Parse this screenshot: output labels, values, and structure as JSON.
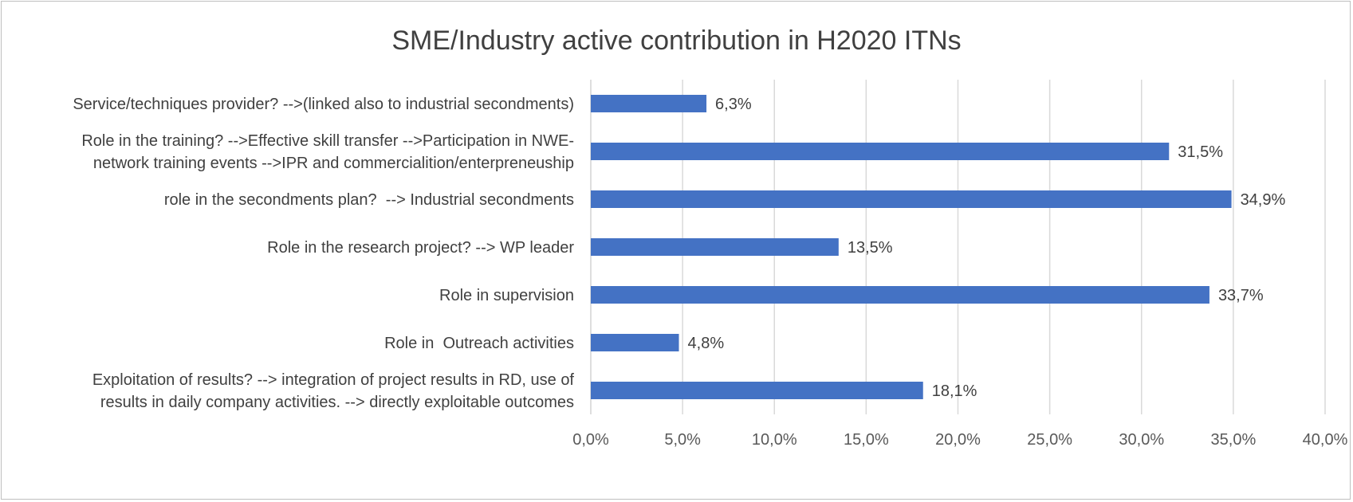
{
  "chart_data": {
    "type": "bar",
    "orientation": "horizontal",
    "title": "SME/Industry active contribution in H2020 ITNs",
    "xlabel": "",
    "ylabel": "",
    "xlim": [
      0,
      40
    ],
    "x_ticks": [
      {
        "value": 0,
        "label": "0,0%"
      },
      {
        "value": 5,
        "label": "5,0%"
      },
      {
        "value": 10,
        "label": "10,0%"
      },
      {
        "value": 15,
        "label": "15,0%"
      },
      {
        "value": 20,
        "label": "20,0%"
      },
      {
        "value": 25,
        "label": "25,0%"
      },
      {
        "value": 30,
        "label": "30,0%"
      },
      {
        "value": 35,
        "label": "35,0%"
      },
      {
        "value": 40,
        "label": "40,0%"
      }
    ],
    "grid": true,
    "bar_color": "#4472c4",
    "categories": [
      [
        "Service/techniques provider? -->(linked also to industrial secondments)"
      ],
      [
        "Role in the training? -->Effective skill transfer -->Participation in NWE-",
        "network training events -->IPR and commercialition/enterpreneuship"
      ],
      [
        "role in the secondments plan?  --> Industrial secondments"
      ],
      [
        "Role in the research project? --> WP leader"
      ],
      [
        "Role in supervision"
      ],
      [
        "Role in  Outreach activities"
      ],
      [
        "Exploitation of results? --> integration of project results in RD, use of",
        "results in daily company activities. --> directly exploitable outcomes"
      ]
    ],
    "values": [
      6.3,
      31.5,
      34.9,
      13.5,
      33.7,
      4.8,
      18.1
    ],
    "data_labels": [
      "6,3%",
      "31,5%",
      "34,9%",
      "13,5%",
      "33,7%",
      "4,8%",
      "18,1%"
    ]
  }
}
